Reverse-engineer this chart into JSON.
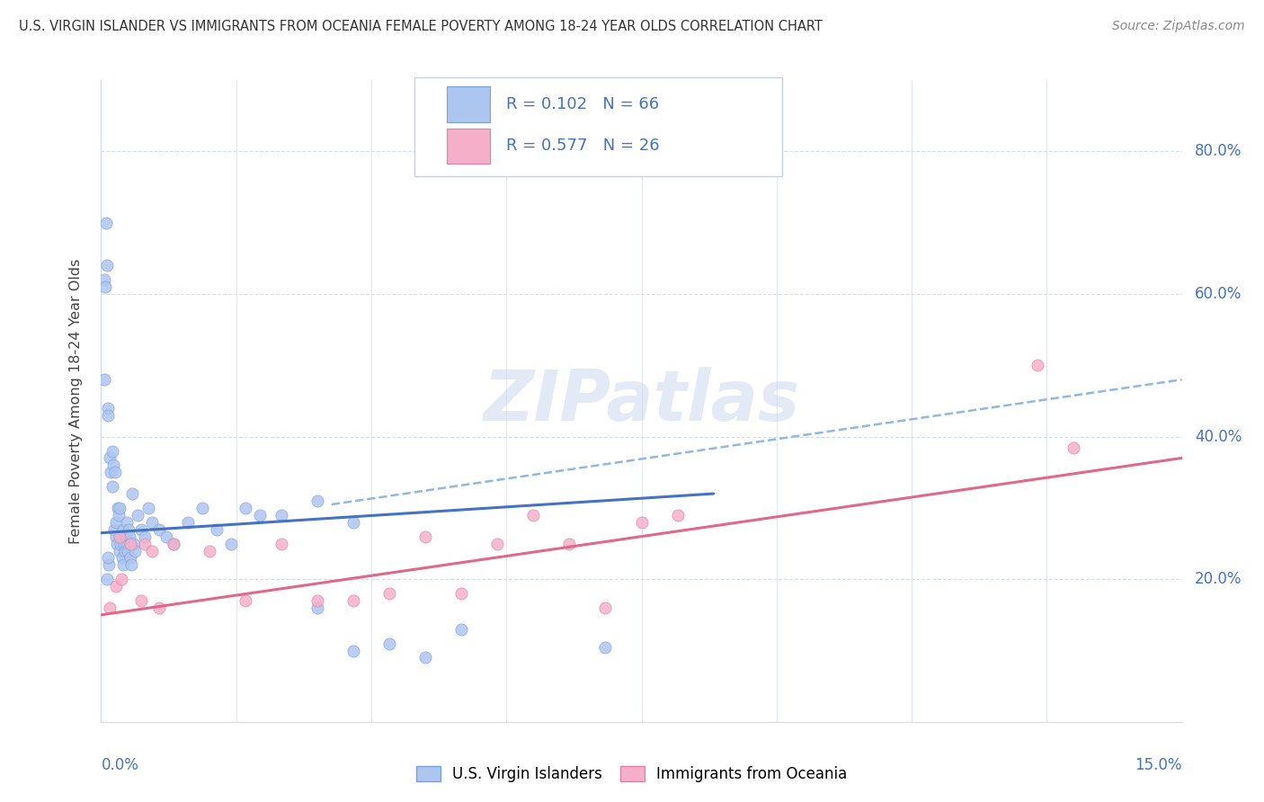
{
  "title": "U.S. VIRGIN ISLANDER VS IMMIGRANTS FROM OCEANIA FEMALE POVERTY AMONG 18-24 YEAR OLDS CORRELATION CHART",
  "source": "Source: ZipAtlas.com",
  "ylabel": "Female Poverty Among 18-24 Year Olds",
  "xlim": [
    0.0,
    15.0
  ],
  "ylim": [
    0.0,
    90.0
  ],
  "yticks": [
    20.0,
    40.0,
    60.0,
    80.0
  ],
  "series1_label": "U.S. Virgin Islanders",
  "series2_label": "Immigrants from Oceania",
  "r1": "0.102",
  "n1": "66",
  "r2": "0.577",
  "n2": "26",
  "blue_fill": "#adc6f0",
  "blue_edge": "#7aa0d8",
  "blue_line": "#4472c4",
  "pink_fill": "#f5afc8",
  "pink_edge": "#e080a8",
  "pink_line": "#e06888",
  "dashed_line": "#90b8e0",
  "grid_color": "#d0d8e8",
  "right_label_color": "#4472c4",
  "bottom_label_color": "#4472c4",
  "legend_text_color": "#4472c4",
  "blue_dots_x": [
    0.05,
    0.07,
    0.08,
    0.09,
    0.1,
    0.11,
    0.12,
    0.13,
    0.15,
    0.16,
    0.17,
    0.18,
    0.19,
    0.2,
    0.21,
    0.22,
    0.23,
    0.24,
    0.25,
    0.26,
    0.27,
    0.28,
    0.29,
    0.3,
    0.31,
    0.32,
    0.33,
    0.34,
    0.35,
    0.36,
    0.37,
    0.38,
    0.39,
    0.4,
    0.41,
    0.42,
    0.43,
    0.45,
    0.47,
    0.5,
    0.55,
    0.6,
    0.65,
    0.7,
    0.8,
    0.9,
    1.0,
    1.2,
    1.4,
    1.6,
    1.8,
    2.0,
    2.5,
    3.0,
    3.5,
    4.0,
    4.5,
    5.0,
    0.05,
    0.06,
    0.08,
    0.1,
    3.0,
    3.5,
    7.0,
    2.2
  ],
  "blue_dots_y": [
    48.0,
    70.0,
    64.0,
    44.0,
    43.0,
    22.0,
    37.0,
    35.0,
    33.0,
    38.0,
    36.0,
    27.0,
    35.0,
    28.0,
    26.0,
    25.0,
    30.0,
    29.0,
    30.0,
    24.0,
    25.0,
    26.0,
    23.0,
    22.0,
    27.0,
    25.0,
    24.0,
    26.0,
    25.0,
    28.0,
    24.0,
    27.0,
    26.0,
    23.0,
    25.0,
    22.0,
    32.0,
    25.0,
    24.0,
    29.0,
    27.0,
    26.0,
    30.0,
    28.0,
    27.0,
    26.0,
    25.0,
    28.0,
    30.0,
    27.0,
    25.0,
    30.0,
    29.0,
    31.0,
    28.0,
    11.0,
    9.0,
    13.0,
    62.0,
    61.0,
    20.0,
    23.0,
    16.0,
    10.0,
    10.5,
    29.0
  ],
  "pink_dots_x": [
    0.12,
    0.2,
    0.25,
    0.28,
    0.4,
    0.55,
    0.6,
    0.7,
    0.8,
    1.0,
    1.5,
    2.0,
    2.5,
    3.0,
    3.5,
    4.0,
    4.5,
    5.0,
    5.5,
    6.0,
    6.5,
    7.0,
    7.5,
    8.0,
    13.0,
    13.5
  ],
  "pink_dots_y": [
    16.0,
    19.0,
    26.0,
    20.0,
    25.0,
    17.0,
    25.0,
    24.0,
    16.0,
    25.0,
    24.0,
    17.0,
    25.0,
    17.0,
    17.0,
    18.0,
    26.0,
    18.0,
    25.0,
    29.0,
    25.0,
    16.0,
    28.0,
    29.0,
    50.0,
    38.5
  ],
  "blue_line_x0": 0.0,
  "blue_line_x1": 8.5,
  "blue_line_y0": 26.5,
  "blue_line_y1": 32.0,
  "pink_line_x0": 0.0,
  "pink_line_x1": 15.0,
  "pink_line_y0": 15.0,
  "pink_line_y1": 37.0,
  "dashed_x0": 3.2,
  "dashed_x1": 15.0,
  "dashed_y0": 30.5,
  "dashed_y1": 48.0
}
